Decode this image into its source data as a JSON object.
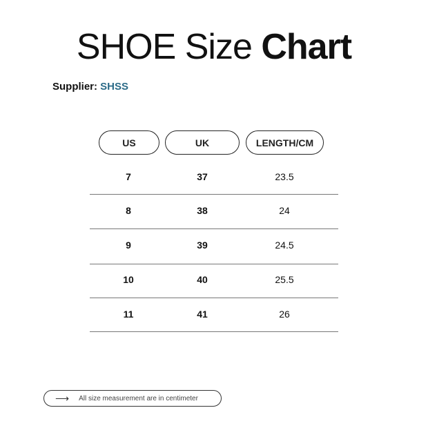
{
  "title": {
    "normal": "SHOE Size ",
    "bold": "Chart"
  },
  "supplier": {
    "label": "Supplier: ",
    "value": "SHSS",
    "color": "#2b6b88"
  },
  "table": {
    "headers": [
      "US",
      "UK",
      "LENGTH/CM"
    ],
    "rows": [
      [
        "7",
        "37",
        "23.5"
      ],
      [
        "8",
        "38",
        "24"
      ],
      [
        "9",
        "39",
        "24.5"
      ],
      [
        "10",
        "40",
        "25.5"
      ],
      [
        "11",
        "41",
        "26"
      ]
    ]
  },
  "footer": {
    "icon": "arrow-right-icon",
    "text": "All size measurement are in centimeter"
  }
}
